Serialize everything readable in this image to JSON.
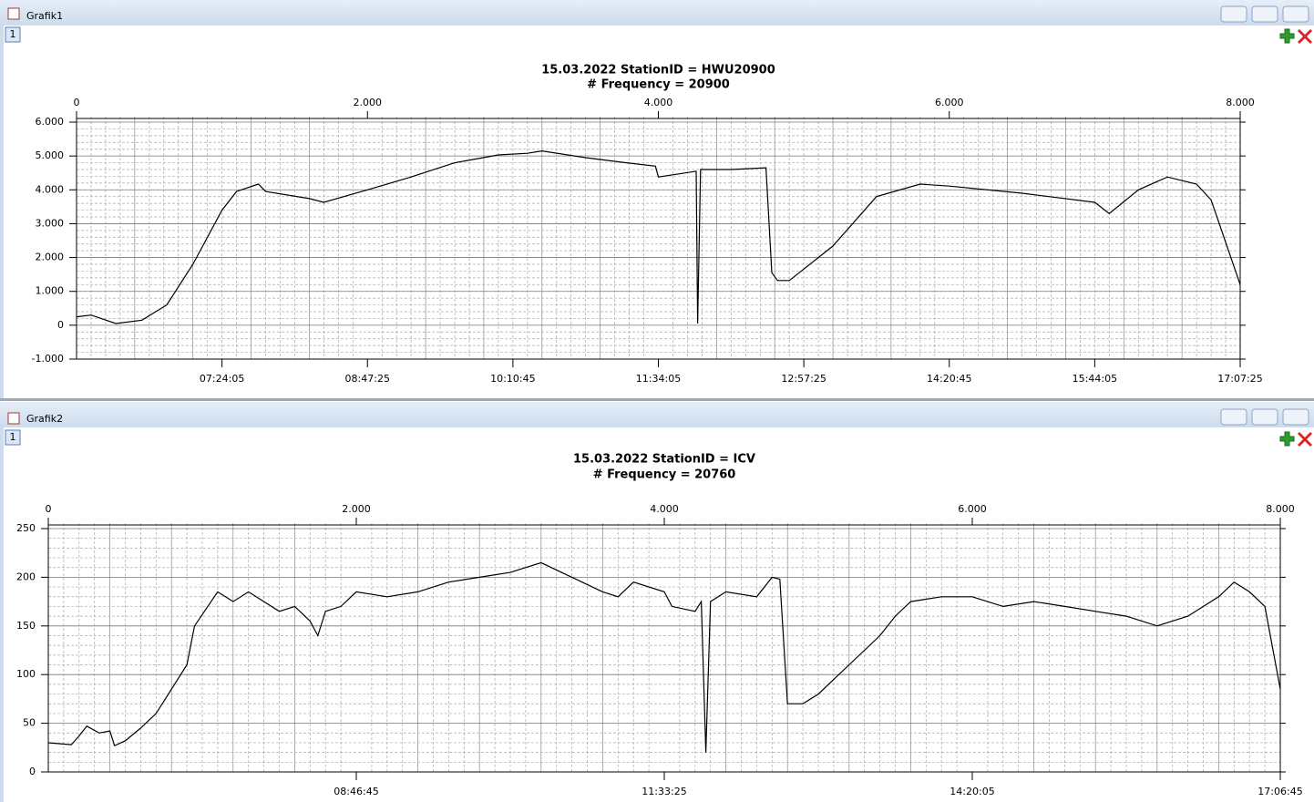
{
  "windows": [
    {
      "title": "Grafik1",
      "tab": "1"
    },
    {
      "title": "Grafik2",
      "tab": "1"
    }
  ],
  "chart_data": [
    {
      "type": "line",
      "title": "15.03.2022 StationID = HWU20900",
      "subtitle": "# Frequency = 20900",
      "x": [
        0,
        100,
        270,
        450,
        620,
        800,
        1000,
        1100,
        1250,
        1300,
        1600,
        1700,
        2000,
        2300,
        2600,
        2900,
        3100,
        3200,
        3500,
        3780,
        3980,
        4000,
        4260,
        4270,
        4290,
        4500,
        4740,
        4780,
        4820,
        4900,
        5200,
        5500,
        5800,
        6000,
        6500,
        7000,
        7100,
        7300,
        7500,
        7700,
        7800,
        8000
      ],
      "series": [
        {
          "color": "#000000",
          "values": [
            250,
            300,
            50,
            150,
            600,
            1800,
            3400,
            3950,
            4170,
            3950,
            3740,
            3630,
            4000,
            4380,
            4800,
            5030,
            5080,
            5150,
            4950,
            4800,
            4700,
            4380,
            4550,
            50,
            4600,
            4600,
            4650,
            1550,
            1320,
            1320,
            2340,
            3800,
            4170,
            4110,
            3900,
            3630,
            3300,
            4000,
            4380,
            4170,
            3700,
            1200
          ]
        }
      ],
      "xlim": [
        0,
        8000
      ],
      "xticks": [
        0,
        {
          "value": 2000,
          "label": "2.000"
        },
        {
          "value": 4000,
          "label": "4.000"
        },
        {
          "value": 6000,
          "label": "6.000"
        },
        {
          "value": 8000,
          "label": "8.000"
        }
      ],
      "x2ticks": [
        {
          "value": 1000,
          "label": "07:24:05"
        },
        {
          "value": 2000,
          "label": "08:47:25"
        },
        {
          "value": 3000,
          "label": "10:10:45"
        },
        {
          "value": 4000,
          "label": "11:34:05"
        },
        {
          "value": 5000,
          "label": "12:57:25"
        },
        {
          "value": 6000,
          "label": "14:20:45"
        },
        {
          "value": 7000,
          "label": "15:44:05"
        },
        {
          "value": 8000,
          "label": "17:07:25"
        }
      ],
      "ylim": [
        -1000,
        6000
      ],
      "yticks": [
        {
          "value": -1000,
          "label": "-1.000"
        },
        0,
        {
          "value": 1000,
          "label": "1.000"
        },
        {
          "value": 2000,
          "label": "2.000"
        },
        {
          "value": 3000,
          "label": "3.000"
        },
        {
          "value": 4000,
          "label": "4.000"
        },
        {
          "value": 5000,
          "label": "5.000"
        },
        {
          "value": 6000,
          "label": "6.000"
        }
      ],
      "grid": true
    },
    {
      "type": "line",
      "title": "15.03.2022 StationID = ICV",
      "subtitle": "# Frequency = 20760",
      "x": [
        0,
        150,
        200,
        250,
        330,
        400,
        430,
        500,
        600,
        700,
        800,
        900,
        950,
        1100,
        1200,
        1300,
        1400,
        1500,
        1600,
        1700,
        1750,
        1800,
        1900,
        2000,
        2200,
        2400,
        2600,
        2800,
        3000,
        3200,
        3400,
        3600,
        3700,
        3800,
        4000,
        4050,
        4200,
        4240,
        4270,
        4300,
        4400,
        4600,
        4700,
        4750,
        4800,
        4900,
        5000,
        5200,
        5400,
        5500,
        5600,
        5800,
        6000,
        6200,
        6400,
        6600,
        6800,
        7000,
        7200,
        7400,
        7600,
        7700,
        7800,
        7900,
        8000
      ],
      "series": [
        {
          "color": "#000000",
          "values": [
            30,
            28,
            37,
            47,
            40,
            42,
            27,
            32,
            45,
            60,
            85,
            110,
            150,
            185,
            175,
            185,
            175,
            165,
            170,
            155,
            140,
            165,
            170,
            185,
            180,
            185,
            195,
            200,
            205,
            215,
            200,
            185,
            180,
            195,
            185,
            170,
            165,
            175,
            20,
            175,
            185,
            180,
            200,
            198,
            70,
            70,
            80,
            110,
            140,
            160,
            175,
            180,
            180,
            170,
            175,
            170,
            165,
            160,
            150,
            160,
            180,
            195,
            185,
            170,
            85
          ]
        }
      ],
      "xlim": [
        0,
        8000
      ],
      "xticks": [
        0,
        {
          "value": 2000,
          "label": "2.000"
        },
        {
          "value": 4000,
          "label": "4.000"
        },
        {
          "value": 6000,
          "label": "6.000"
        },
        {
          "value": 8000,
          "label": "8.000"
        }
      ],
      "x2ticks": [
        {
          "value": 2000,
          "label": "08:46:45"
        },
        {
          "value": 4000,
          "label": "11:33:25"
        },
        {
          "value": 6000,
          "label": "14:20:05"
        },
        {
          "value": 8000,
          "label": "17:06:45"
        }
      ],
      "ylim": [
        0,
        250
      ],
      "yticks": [
        0,
        50,
        100,
        150,
        200,
        250
      ],
      "grid": true
    }
  ]
}
